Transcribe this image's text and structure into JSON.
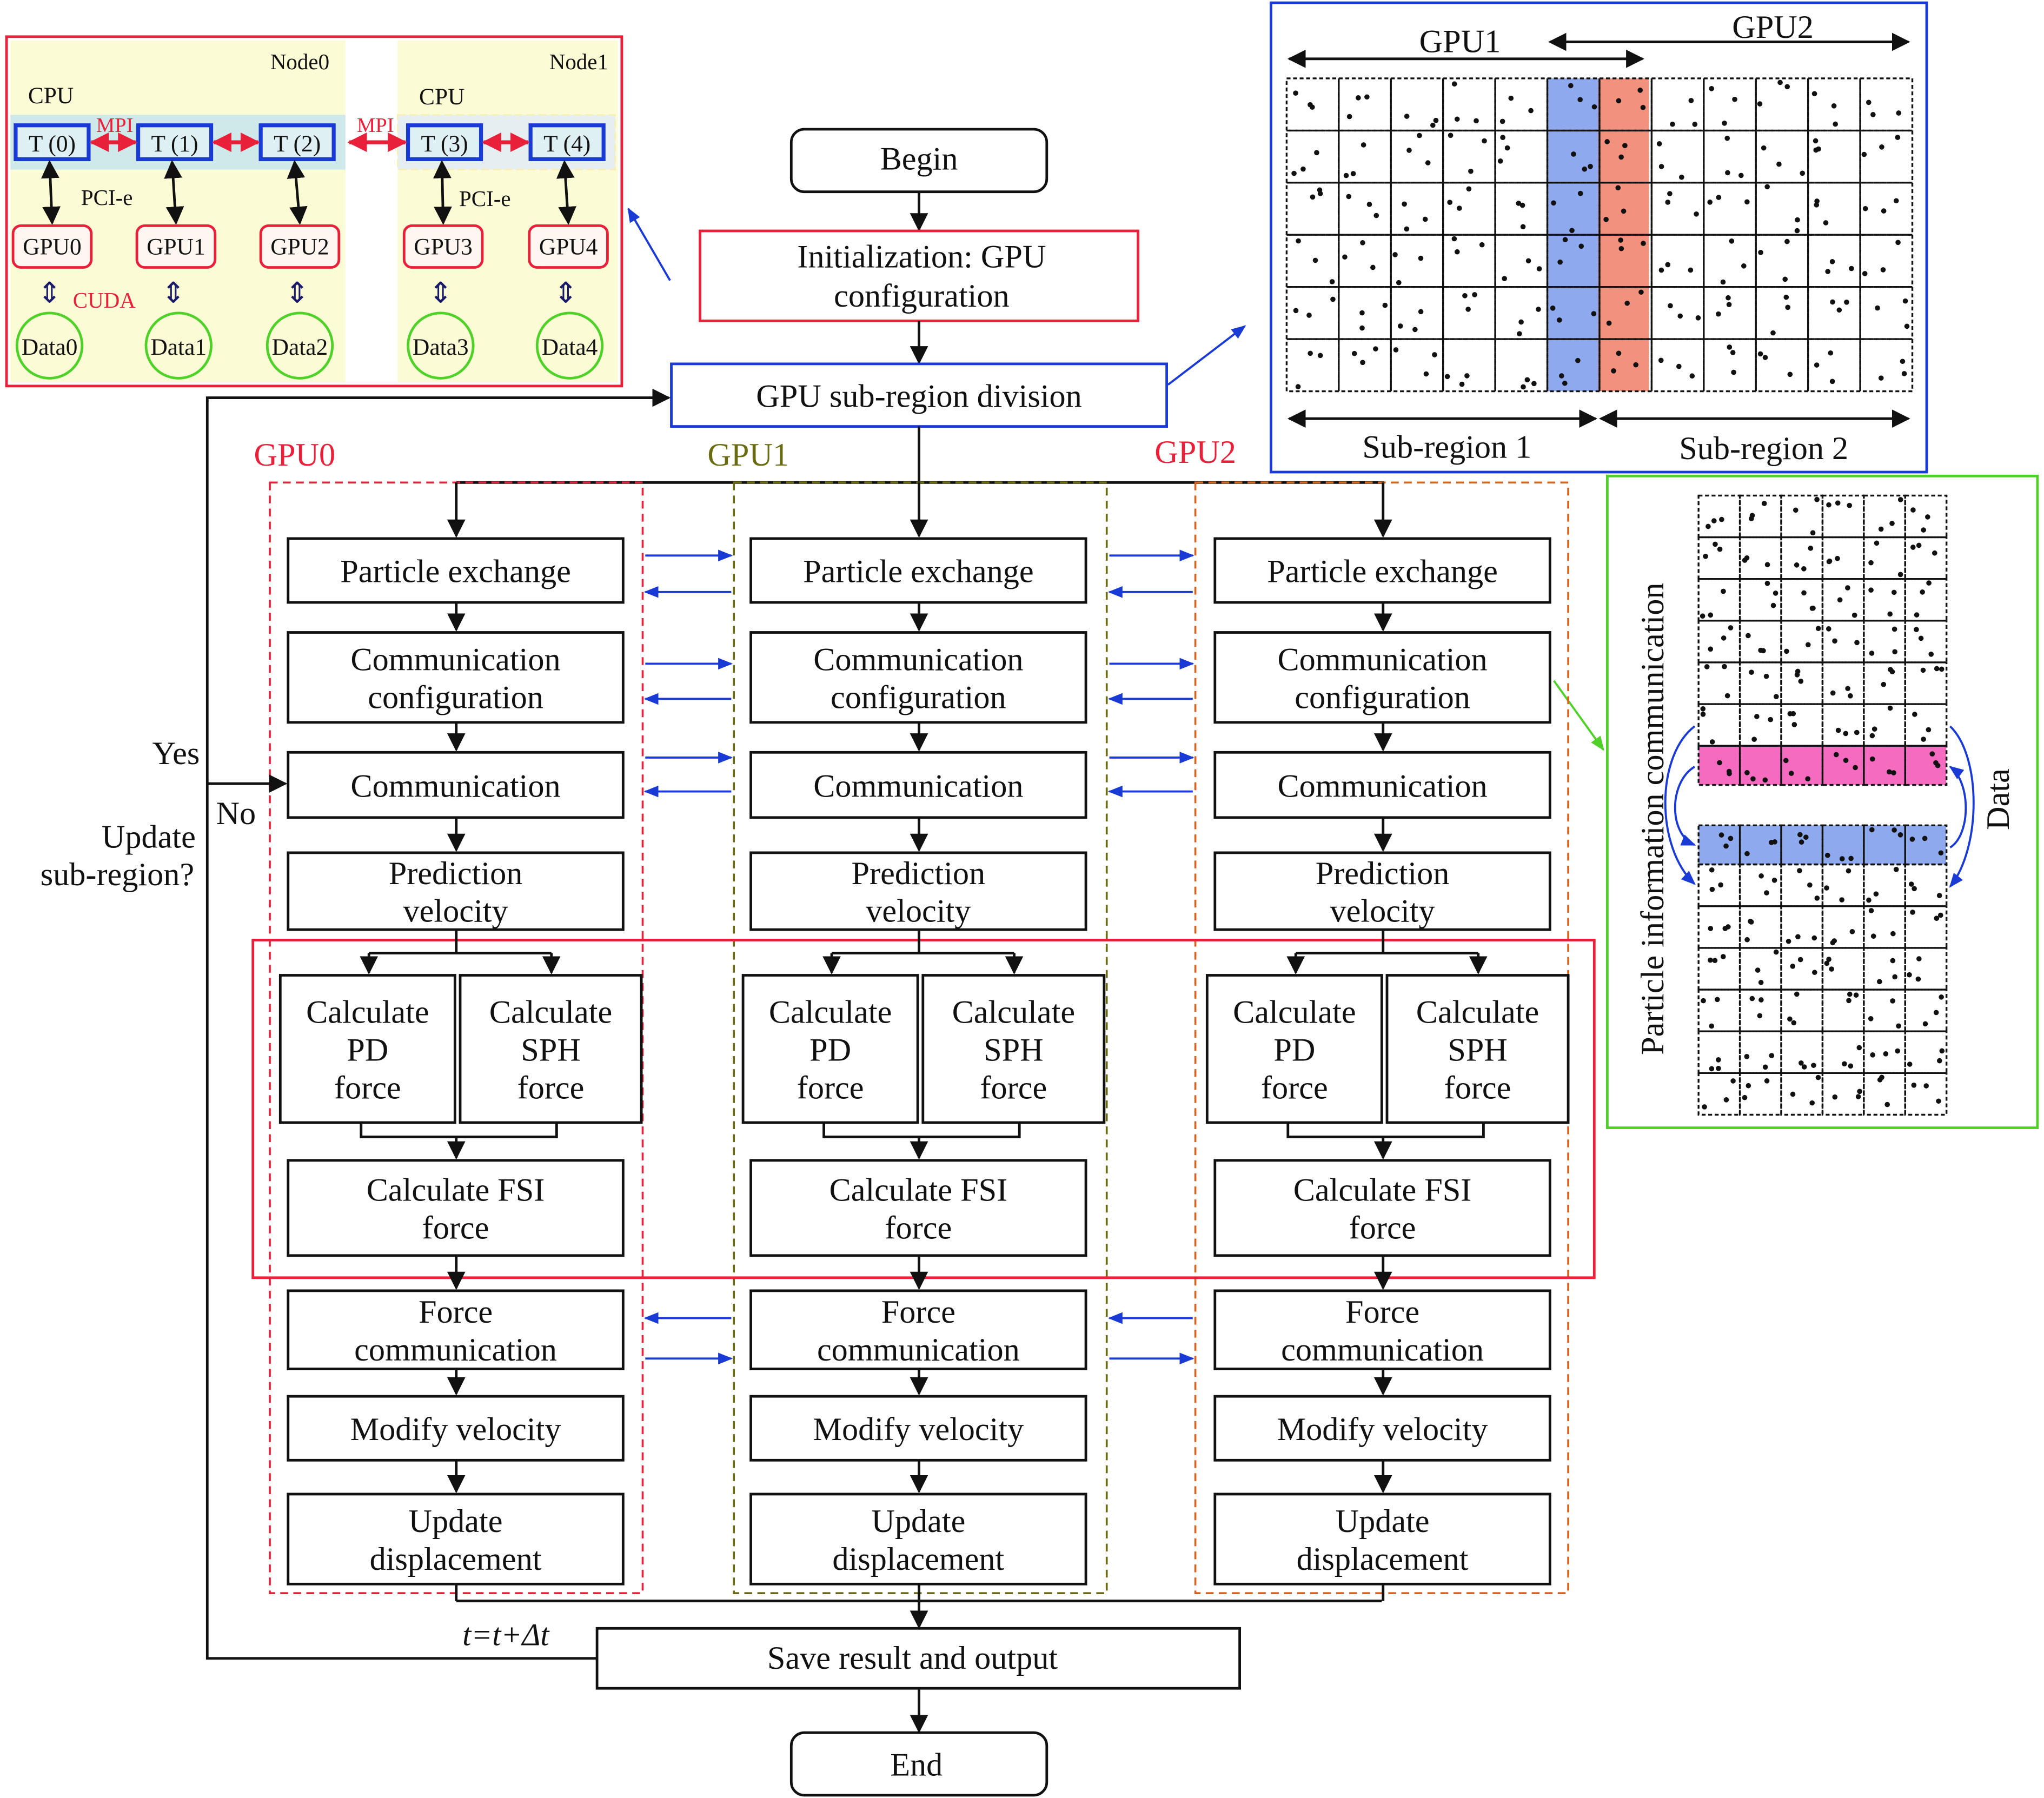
{
  "cluster": {
    "node0": "Node0",
    "node1": "Node1",
    "cpu": "CPU",
    "mpi": "MPI",
    "pcie": "PCI-e",
    "cuda": "CUDA",
    "threads": [
      "T (0)",
      "T (1)",
      "T (2)",
      "T (3)",
      "T (4)"
    ],
    "gpus": [
      "GPU0",
      "GPU1",
      "GPU2",
      "GPU3",
      "GPU4"
    ],
    "data": [
      "Data0",
      "Data1",
      "Data2",
      "Data3",
      "Data4"
    ]
  },
  "flow": {
    "begin": "Begin",
    "init": [
      "Initialization: GPU",
      "configuration"
    ],
    "division": "GPU sub-region division",
    "gpu_labels": [
      "GPU0",
      "GPU1",
      "GPU2"
    ],
    "steps": {
      "particle_exchange": "Particle exchange",
      "comm_config": [
        "Communication",
        "configuration"
      ],
      "communication": "Communication",
      "prediction": [
        "Prediction",
        "velocity"
      ],
      "pd": [
        "Calculate",
        "PD",
        "force"
      ],
      "sph": [
        "Calculate",
        "SPH",
        "force"
      ],
      "fsi": [
        "Calculate FSI",
        "force"
      ],
      "force_comm": [
        "Force",
        "communication"
      ],
      "modify": "Modify velocity",
      "update": [
        "Update",
        "displacement"
      ]
    },
    "decision": [
      "Update",
      "sub-region?"
    ],
    "yes": "Yes",
    "no": "No",
    "timestep": "t=t+Δt",
    "save": "Save result and output",
    "end": "End"
  },
  "subregion_panel": {
    "gpu1": "GPU1",
    "gpu2": "GPU2",
    "sub1": "Sub-region 1",
    "sub2": "Sub-region 2"
  },
  "comm_panel": {
    "label": "Particle information communication",
    "data": "Data"
  },
  "colors": {
    "red": "#e8203a",
    "blue": "#1a3ad6",
    "green": "#4fd12a",
    "olive": "#6b6b12",
    "orange": "#d8621e",
    "yellow_bg": "#fbfbd6",
    "blue_band": "#8fa9ee",
    "red_band": "#f3917f",
    "pink_band": "#f56bc0"
  }
}
